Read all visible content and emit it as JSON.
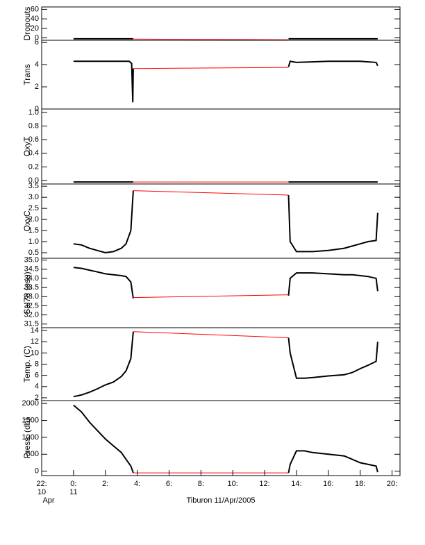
{
  "chart_data": [
    {
      "type": "line",
      "ylabel": "Dropouts",
      "xlim": [
        -2,
        20.5
      ],
      "ylim": [
        -5,
        65
      ],
      "yticks": [
        0,
        20,
        40,
        60
      ],
      "series": [
        {
          "color": "#000000",
          "x": [
            0,
            1,
            2,
            3,
            3.75,
            8,
            13.5,
            15,
            17,
            19.1
          ],
          "values": [
            -2,
            -2,
            -2,
            -2,
            -2,
            null,
            -2,
            -2,
            -2,
            -2
          ]
        },
        {
          "color": "#ff0000",
          "x": [
            3.75,
            13.5
          ],
          "values": [
            -2.5,
            -4
          ]
        }
      ]
    },
    {
      "type": "line",
      "ylabel": "Trans",
      "xlim": [
        -2,
        20.5
      ],
      "ylim": [
        0,
        6.2
      ],
      "yticks": [
        0,
        2,
        4,
        6
      ],
      "series": [
        {
          "color": "#000000",
          "x": [
            0,
            1,
            2,
            3,
            3.5,
            3.65,
            3.72,
            3.75,
            8,
            13.5,
            13.6,
            14,
            15,
            16,
            17,
            18,
            18.5,
            19,
            19.1
          ],
          "values": [
            4.3,
            4.3,
            4.3,
            4.3,
            4.3,
            4.1,
            0.6,
            3.65,
            null,
            3.8,
            4.3,
            4.2,
            4.25,
            4.3,
            4.3,
            4.3,
            4.25,
            4.2,
            3.9
          ]
        },
        {
          "color": "#ff0000",
          "x": [
            3.75,
            13.5
          ],
          "values": [
            3.65,
            3.75
          ]
        }
      ]
    },
    {
      "type": "line",
      "ylabel": "OxyT",
      "xlim": [
        -2,
        20.5
      ],
      "ylim": [
        -0.05,
        1.05
      ],
      "yticks": [
        {
          "value": 0,
          "label": "0.0"
        },
        0.2,
        0.4,
        0.6,
        0.8,
        {
          "value": 1,
          "label": "1.0"
        }
      ],
      "series": [
        {
          "color": "#000000",
          "x": [
            0,
            1,
            2,
            3,
            3.75,
            8,
            13.5,
            15,
            17,
            19.1
          ],
          "values": [
            -0.02,
            -0.02,
            -0.02,
            -0.02,
            -0.02,
            null,
            -0.02,
            -0.02,
            -0.02,
            -0.02
          ]
        },
        {
          "color": "#ff0000",
          "x": [
            3.75,
            13.5
          ],
          "values": [
            -0.02,
            -0.02
          ]
        }
      ]
    },
    {
      "type": "line",
      "ylabel": "OxyC",
      "xlim": [
        -2,
        20.5
      ],
      "ylim": [
        0.25,
        3.6
      ],
      "yticks": [
        0.5,
        {
          "value": 1,
          "label": "1.0"
        },
        1.5,
        {
          "value": 2,
          "label": "2.0"
        },
        2.5,
        {
          "value": 3,
          "label": "3.0"
        },
        3.5
      ],
      "series": [
        {
          "color": "#000000",
          "x": [
            0,
            0.5,
            1,
            1.5,
            2,
            2.5,
            3,
            3.3,
            3.6,
            3.75,
            8,
            13.5,
            13.6,
            14,
            14.5,
            15,
            16,
            17,
            17.5,
            18,
            18.5,
            19,
            19.1
          ],
          "values": [
            0.9,
            0.85,
            0.7,
            0.6,
            0.5,
            0.55,
            0.7,
            0.9,
            1.5,
            3.3,
            null,
            3.1,
            1.0,
            0.55,
            0.55,
            0.55,
            0.6,
            0.7,
            0.8,
            0.9,
            1.0,
            1.05,
            2.3
          ]
        },
        {
          "color": "#ff0000",
          "x": [
            3.75,
            13.5
          ],
          "values": [
            3.3,
            3.1
          ]
        }
      ]
    },
    {
      "type": "line",
      "ylabel": "Sal78 (psu)",
      "xlim": [
        -2,
        20.5
      ],
      "ylim": [
        31.3,
        35.1
      ],
      "yticks": [
        31.5,
        {
          "value": 32,
          "label": "32.0"
        },
        32.5,
        {
          "value": 33,
          "label": "33.0"
        },
        33.5,
        {
          "value": 34,
          "label": "34.0"
        },
        34.5,
        {
          "value": 35,
          "label": "35.0"
        }
      ],
      "series": [
        {
          "color": "#000000",
          "x": [
            0,
            0.5,
            1,
            1.5,
            2,
            2.5,
            3,
            3.3,
            3.6,
            3.75,
            8,
            13.5,
            13.6,
            14,
            14.5,
            15,
            16,
            17,
            17.5,
            18,
            18.5,
            19,
            19.1
          ],
          "values": [
            34.6,
            34.55,
            34.45,
            34.35,
            34.25,
            34.2,
            34.15,
            34.1,
            33.8,
            32.9,
            null,
            33.05,
            34.0,
            34.3,
            34.3,
            34.3,
            34.25,
            34.2,
            34.2,
            34.15,
            34.1,
            34.0,
            33.3
          ]
        },
        {
          "color": "#ff0000",
          "x": [
            3.75,
            13.5
          ],
          "values": [
            32.95,
            33.1
          ]
        }
      ]
    },
    {
      "type": "line",
      "ylabel": "Temp. (C)",
      "xlim": [
        -2,
        20.5
      ],
      "ylim": [
        1.5,
        14.5
      ],
      "yticks": [
        2,
        4,
        6,
        8,
        10,
        12,
        14
      ],
      "series": [
        {
          "color": "#000000",
          "x": [
            0,
            0.5,
            1,
            1.5,
            2,
            2.5,
            3,
            3.3,
            3.6,
            3.75,
            8,
            13.5,
            13.6,
            14,
            14.5,
            15,
            16,
            17,
            17.5,
            18,
            18.5,
            19,
            19.1
          ],
          "values": [
            2.2,
            2.5,
            3.0,
            3.6,
            4.3,
            4.8,
            5.8,
            6.8,
            9,
            13.8,
            null,
            12.7,
            10,
            5.5,
            5.5,
            5.6,
            5.9,
            6.1,
            6.5,
            7.2,
            7.8,
            8.5,
            12
          ]
        },
        {
          "color": "#ff0000",
          "x": [
            3.75,
            13.5
          ],
          "values": [
            13.8,
            12.7
          ]
        }
      ]
    },
    {
      "type": "line",
      "ylabel": "Press. (db)",
      "xlim": [
        -2,
        20.5
      ],
      "ylim": [
        -130,
        2085
      ],
      "yticks": [
        0,
        500,
        1000,
        1500,
        2000
      ],
      "xticks": [
        {
          "value": -2,
          "label": "22:"
        },
        {
          "value": 0,
          "label": "0:"
        },
        {
          "value": 2,
          "label": "2:"
        },
        {
          "value": 4,
          "label": "4:"
        },
        {
          "value": 6,
          "label": "6:"
        },
        {
          "value": 8,
          "label": "8:"
        },
        {
          "value": 10,
          "label": "10:"
        },
        {
          "value": 12,
          "label": "12:"
        },
        {
          "value": 14,
          "label": "14:"
        },
        {
          "value": 16,
          "label": "16:"
        },
        {
          "value": 18,
          "label": "18:"
        },
        {
          "value": 20,
          "label": "20:"
        }
      ],
      "xtick_day_labels": [
        {
          "value": -2,
          "label": "10"
        },
        {
          "value": 0,
          "label": "11"
        }
      ],
      "xtick_month_labels": [
        {
          "value": -2,
          "label": "Apr"
        }
      ],
      "xlabel": "Tiburon 11/Apr/2005",
      "series": [
        {
          "color": "#000000",
          "x": [
            0,
            0.5,
            1,
            1.5,
            2,
            2.5,
            3,
            3.3,
            3.6,
            3.75,
            8,
            13.5,
            13.6,
            14,
            14.5,
            15,
            16,
            17,
            17.5,
            18,
            18.5,
            19,
            19.1
          ],
          "values": [
            1950,
            1750,
            1450,
            1200,
            950,
            750,
            550,
            350,
            150,
            -50,
            null,
            -50,
            200,
            600,
            600,
            550,
            500,
            450,
            350,
            250,
            200,
            150,
            -30
          ]
        },
        {
          "color": "#ff0000",
          "x": [
            3.75,
            13.5
          ],
          "values": [
            -50,
            -50
          ]
        }
      ]
    }
  ]
}
